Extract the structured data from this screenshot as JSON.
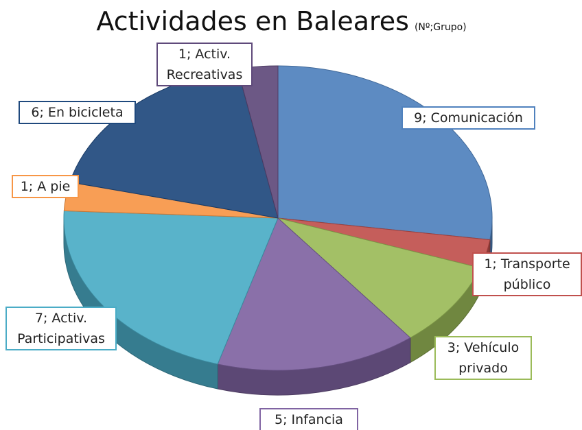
{
  "chart_data": {
    "type": "pie",
    "title": "Actividades en Baleares",
    "subtitle": "(Nº;Grupo)",
    "values": [
      9,
      1,
      3,
      5,
      7,
      1,
      6,
      1
    ],
    "value_labels": [
      "9; Comunicación",
      "1; Transporte público",
      "3; Vehículo privado",
      "5; Infancia",
      "7; Activ. Participativas",
      "1; A pie",
      "6; En bicicleta",
      "1; Activ. Recreativas"
    ],
    "colors": [
      "#4f81bd",
      "#c0504d",
      "#9bbb59",
      "#8064a2",
      "#4bacc6",
      "#f79646",
      "#1f497d",
      "#5f4a7b"
    ],
    "three_d": true
  }
}
